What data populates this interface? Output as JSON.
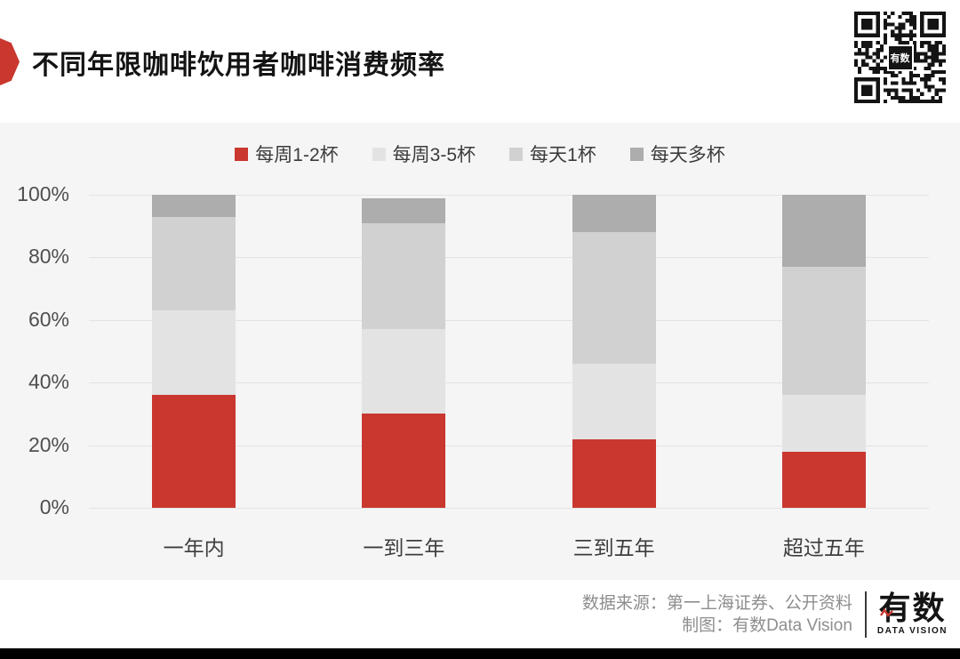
{
  "header": {
    "title": "不同年限咖啡饮用者咖啡消费频率"
  },
  "qr": {
    "center_label": "有数"
  },
  "chart_data": {
    "type": "bar",
    "stacked": true,
    "title": "不同年限咖啡饮用者咖啡消费频率",
    "categories": [
      "一年内",
      "一到三年",
      "三到五年",
      "超过五年"
    ],
    "series": [
      {
        "name": "每周1-2杯",
        "color": "#C9372F",
        "values": [
          36,
          30,
          22,
          18
        ]
      },
      {
        "name": "每周3-5杯",
        "color": "#E3E3E3",
        "values": [
          27,
          27,
          24,
          18
        ]
      },
      {
        "name": "每天1杯",
        "color": "#D1D1D1",
        "values": [
          30,
          34,
          42,
          41
        ]
      },
      {
        "name": "每天多杯",
        "color": "#ADADAD",
        "values": [
          7,
          8,
          12,
          23
        ]
      }
    ],
    "ylim": [
      0,
      100
    ],
    "yticks": [
      0,
      20,
      40,
      60,
      80,
      100
    ],
    "ytick_labels": [
      "0%",
      "20%",
      "40%",
      "60%",
      "80%",
      "100%"
    ],
    "grid": true,
    "legend_position": "top",
    "xlabel": "",
    "ylabel": ""
  },
  "footer": {
    "source_line": "数据来源：第一上海证券、公开资料",
    "credit_line": "制图：有数Data Vision",
    "logo_text": "有数",
    "logo_subtext": "DATA VISION"
  },
  "colors": {
    "accent_red": "#C9372F",
    "panel_bg": "#F5F5F5",
    "gridline": "#E3E3E3",
    "bottom_bar": "#000000"
  }
}
